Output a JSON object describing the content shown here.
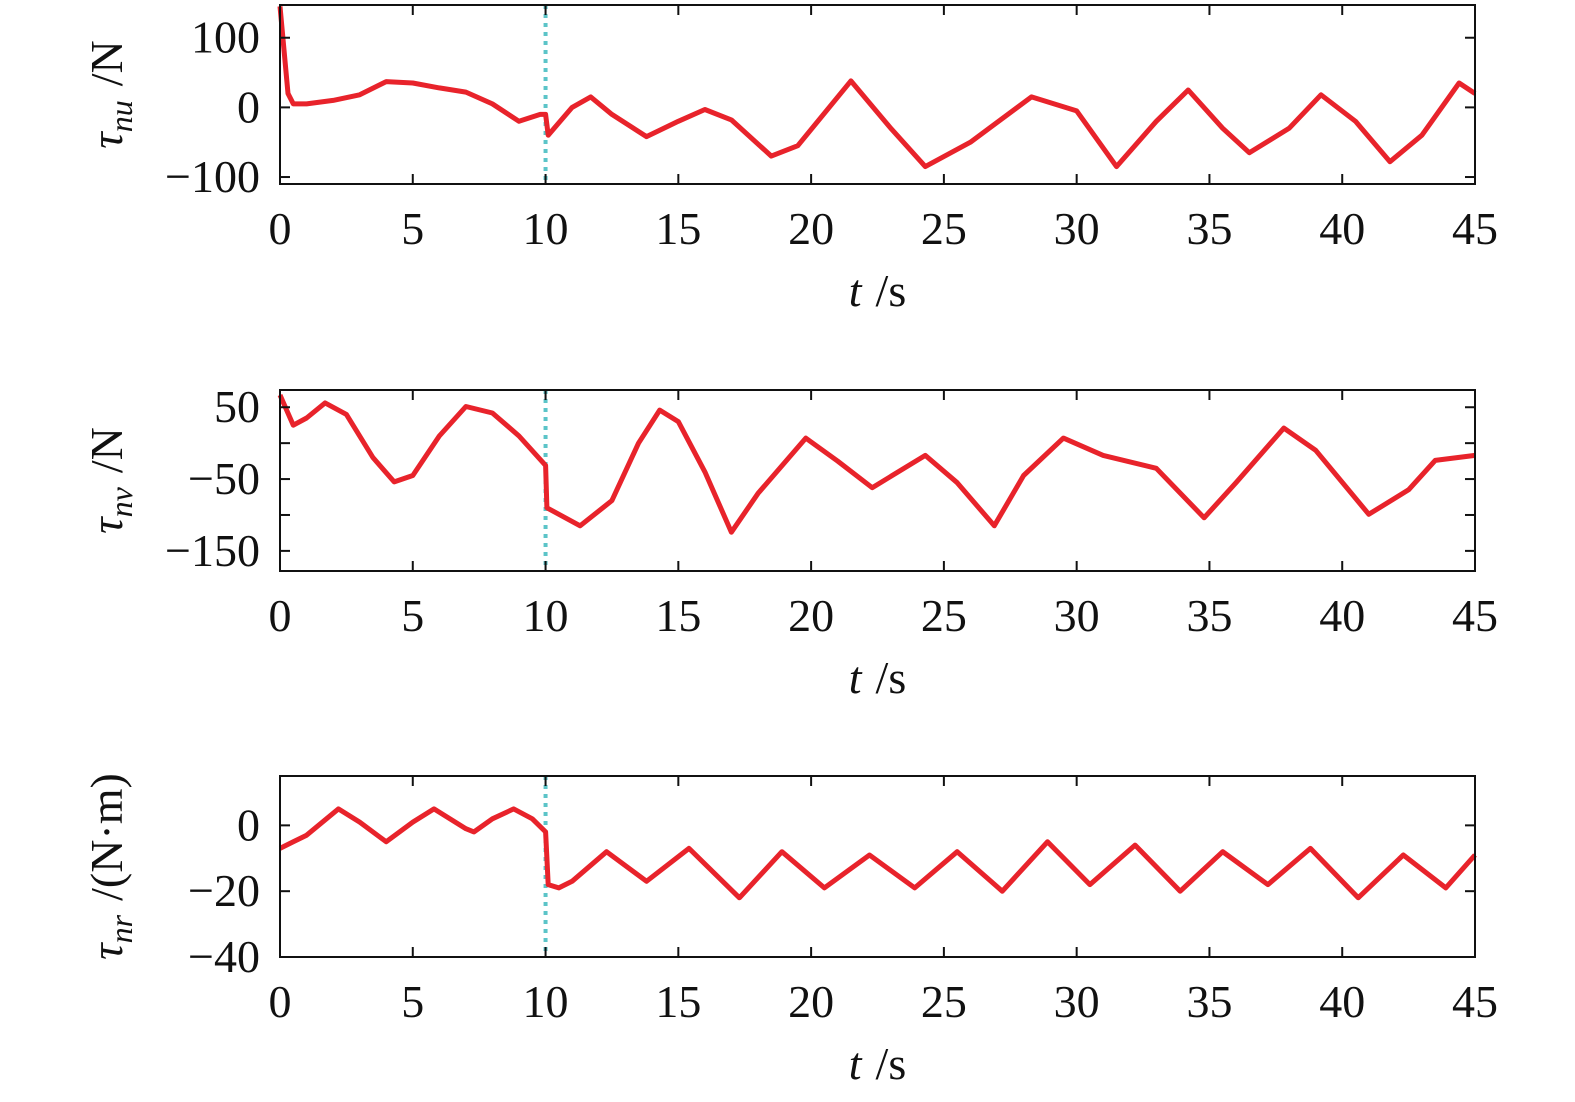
{
  "chart_data": [
    {
      "type": "line",
      "ylabel_symbol": "τ",
      "ylabel_subscript": "nu",
      "ylabel_unit": "/N",
      "xlabel_symbol": "t",
      "xlabel_unit": "/s",
      "xlim": [
        0,
        45
      ],
      "xticks": [
        0,
        5,
        10,
        15,
        20,
        25,
        30,
        35,
        40,
        45
      ],
      "ylim": [
        -110,
        147
      ],
      "yticks": [
        {
          "value": -100,
          "label": "−100"
        },
        0,
        100
      ],
      "vline": {
        "x": 10,
        "color": "#5bc4c8"
      },
      "x": [
        0,
        0.3,
        0.5,
        1,
        2,
        3,
        4,
        5,
        6,
        7,
        8,
        9,
        9.8,
        10,
        10.1,
        11,
        11.7,
        12.5,
        13.8,
        15,
        16,
        17,
        18.5,
        19.5,
        21.5,
        23,
        24.3,
        26,
        28.3,
        30,
        31.5,
        33,
        34.2,
        35.5,
        36.5,
        38,
        39.2,
        40.5,
        41.8,
        43,
        44.4,
        45
      ],
      "series": [
        {
          "color": "#e8232b",
          "values": [
            145,
            20,
            5,
            5,
            10,
            18,
            37,
            35,
            28,
            22,
            5,
            -20,
            -10,
            -10,
            -40,
            0,
            15,
            -10,
            -42,
            -20,
            -3,
            -18,
            -70,
            -55,
            38,
            -30,
            -85,
            -50,
            15,
            -5,
            -85,
            -20,
            25,
            -30,
            -65,
            -30,
            18,
            -20,
            -78,
            -40,
            35,
            20
          ]
        }
      ]
    },
    {
      "type": "line",
      "ylabel_symbol": "τ",
      "ylabel_subscript": "nv",
      "ylabel_unit": "/N",
      "xlabel_symbol": "t",
      "xlabel_unit": "/s",
      "xlim": [
        0,
        45
      ],
      "xticks": [
        0,
        5,
        10,
        15,
        20,
        25,
        30,
        35,
        40,
        45
      ],
      "ylim": [
        -178,
        74
      ],
      "yticks": [
        {
          "value": -150,
          "label": "−150"
        },
        {
          "value": -50,
          "label": "−50"
        },
        50
      ],
      "minor_yticks": [
        -100,
        0
      ],
      "vline": {
        "x": 10,
        "color": "#5bc4c8"
      },
      "x": [
        0,
        0.5,
        1,
        1.7,
        2.5,
        3.5,
        4.3,
        5,
        6,
        7,
        8,
        9,
        10,
        10.05,
        11.3,
        12.5,
        13.5,
        14.3,
        15,
        16,
        17,
        18,
        19.8,
        21,
        22.3,
        24.3,
        25.5,
        26.9,
        28,
        29.5,
        31,
        33,
        34.8,
        36,
        37.8,
        39,
        41,
        42.5,
        43.5,
        45
      ],
      "series": [
        {
          "color": "#e8232b",
          "values": [
            67,
            25,
            35,
            56,
            40,
            -20,
            -54,
            -45,
            10,
            51,
            42,
            10,
            -31,
            -90,
            -115,
            -80,
            0,
            46,
            30,
            -40,
            -124,
            -70,
            7,
            -25,
            -62,
            -17,
            -55,
            -115,
            -45,
            7,
            -17,
            -35,
            -104,
            -55,
            21,
            -10,
            -99,
            -65,
            -24,
            -17
          ]
        }
      ]
    },
    {
      "type": "line",
      "ylabel_symbol": "τ",
      "ylabel_subscript": "nr",
      "ylabel_unit": "/(N·m)",
      "xlabel_symbol": "t",
      "xlabel_unit": "/s",
      "xlim": [
        0,
        45
      ],
      "xticks": [
        0,
        5,
        10,
        15,
        20,
        25,
        30,
        35,
        40,
        45
      ],
      "ylim": [
        -40,
        15
      ],
      "yticks": [
        {
          "value": -40,
          "label": "−40"
        },
        {
          "value": -20,
          "label": "−20"
        },
        0
      ],
      "vline": {
        "x": 10,
        "color": "#5bc4c8"
      },
      "x": [
        0,
        0.5,
        1,
        2.2,
        3,
        4,
        5,
        5.8,
        7,
        7.3,
        8,
        8.8,
        9.5,
        10,
        10.1,
        10.5,
        11,
        12.3,
        13.8,
        15.4,
        17.3,
        18.9,
        20.5,
        22.2,
        23.9,
        25.5,
        27.2,
        28.9,
        30.5,
        32.2,
        33.9,
        35.5,
        37.2,
        38.8,
        40.6,
        42.3,
        43.9,
        45
      ],
      "series": [
        {
          "color": "#e8232b",
          "values": [
            -7,
            -5,
            -3,
            5,
            1,
            -5,
            1,
            5,
            -1,
            -2,
            2,
            5,
            2,
            -2,
            -18,
            -19,
            -17,
            -8,
            -17,
            -7,
            -22,
            -8,
            -19,
            -9,
            -19,
            -8,
            -20,
            -5,
            -18,
            -6,
            -20,
            -8,
            -18,
            -7,
            -22,
            -9,
            -19,
            -9
          ]
        }
      ]
    }
  ]
}
